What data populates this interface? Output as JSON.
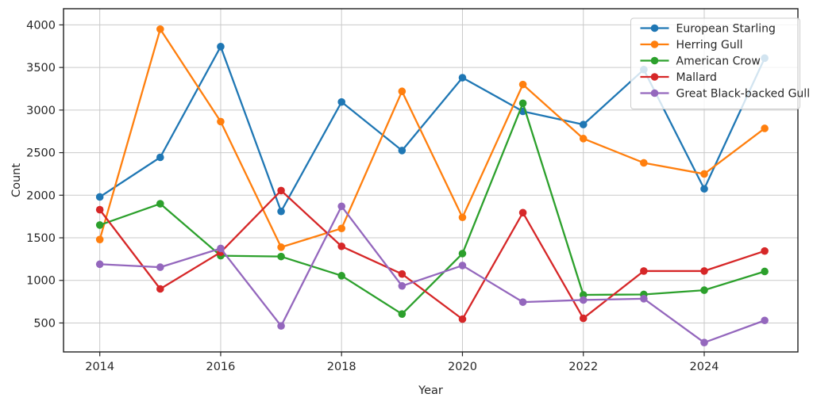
{
  "chart_data": {
    "type": "line",
    "title": "",
    "xlabel": "Year",
    "ylabel": "Count",
    "x": [
      2014,
      2015,
      2016,
      2017,
      2018,
      2019,
      2020,
      2021,
      2022,
      2023,
      2024,
      2025
    ],
    "series": [
      {
        "name": "European Starling",
        "color": "#1f77b4",
        "values": [
          1980,
          2445,
          3745,
          1810,
          3095,
          2525,
          3380,
          2985,
          2830,
          3475,
          2075,
          3610
        ]
      },
      {
        "name": "Herring Gull",
        "color": "#ff7f0e",
        "values": [
          1480,
          3950,
          2865,
          1390,
          1610,
          3220,
          1740,
          3300,
          2665,
          2380,
          2250,
          2785
        ]
      },
      {
        "name": "American Crow",
        "color": "#2ca02c",
        "values": [
          1650,
          1900,
          1290,
          1280,
          1055,
          605,
          1315,
          3080,
          830,
          835,
          885,
          1105
        ]
      },
      {
        "name": "Mallard",
        "color": "#d62728",
        "values": [
          1830,
          900,
          1330,
          2055,
          1400,
          1075,
          545,
          1795,
          555,
          1110,
          1110,
          1345
        ]
      },
      {
        "name": "Great Black-backed Gull",
        "color": "#9467bd",
        "values": [
          1190,
          1155,
          1375,
          465,
          1870,
          935,
          1175,
          745,
          770,
          785,
          270,
          530
        ]
      }
    ],
    "xticks": [
      2014,
      2016,
      2018,
      2020,
      2022,
      2024
    ],
    "yticks": [
      500,
      1000,
      1500,
      2000,
      2500,
      3000,
      3500,
      4000
    ],
    "xlim": [
      2013.4,
      2025.55
    ],
    "ylim": [
      160,
      4190
    ],
    "grid": true,
    "legend_position": "upper right",
    "colors": {
      "grid": "#c9c9c9",
      "spine": "#1f1f1f",
      "tick": "#262626",
      "legend_border": "#cccccc",
      "legend_bg": "rgba(255,255,255,0.8)",
      "background": "#ffffff"
    }
  }
}
